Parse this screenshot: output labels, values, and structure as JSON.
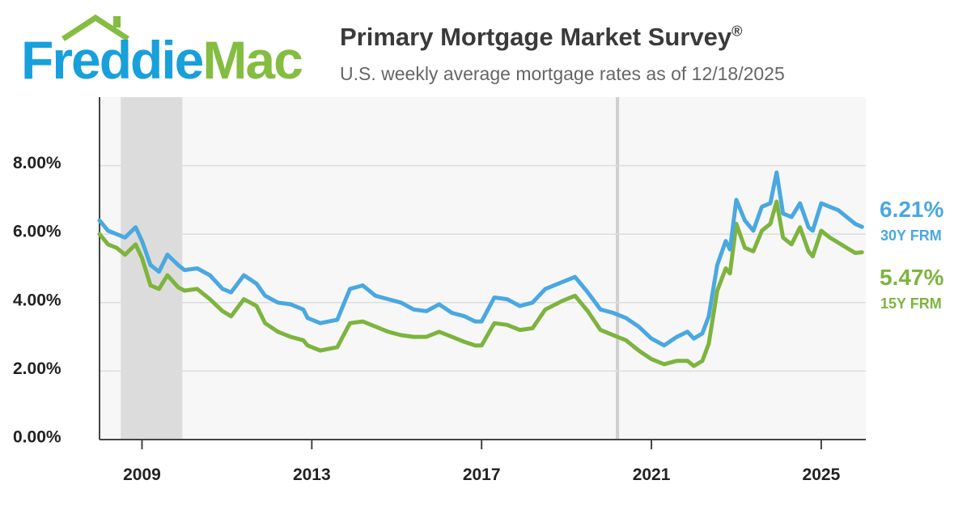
{
  "header": {
    "logo_text_1": "Freddie",
    "logo_text_2": "Mac",
    "title": "Primary Mortgage Market Survey",
    "title_mark": "®",
    "subtitle": "U.S. weekly average mortgage rates as of 12/18/2025"
  },
  "colors": {
    "brand_blue": "#18a0dc",
    "brand_green": "#84bd41",
    "series_30y": "#4aa8e0",
    "series_15y": "#7db43e",
    "recession_band": "#dcdcdc",
    "plot_background": "#f7f7f7"
  },
  "chart_data": {
    "type": "line",
    "title": "Primary Mortgage Market Survey",
    "subtitle": "U.S. weekly average mortgage rates as of 12/18/2025",
    "xlabel": "",
    "ylabel": "",
    "xlim": [
      2008.0,
      2026.05
    ],
    "ylim": [
      0,
      10
    ],
    "yticks": [
      0,
      2,
      4,
      6,
      8
    ],
    "ytick_labels": [
      "0.00%",
      "2.00%",
      "4.00%",
      "6.00%",
      "8.00%"
    ],
    "xticks": [
      2009,
      2013,
      2017,
      2021,
      2025
    ],
    "xtick_labels": [
      "2009",
      "2013",
      "2017",
      "2021",
      "2025"
    ],
    "grid": "horizontal",
    "shaded_periods": [
      {
        "start": 2008.5,
        "end": 2009.95,
        "label": ""
      }
    ],
    "reference_lines": [
      2020.2
    ],
    "series": [
      {
        "name": "30Y FRM",
        "end_label": "6.21%",
        "x": [
          2008.0,
          2008.2,
          2008.4,
          2008.6,
          2008.85,
          2009.0,
          2009.2,
          2009.4,
          2009.6,
          2009.85,
          2010.0,
          2010.3,
          2010.6,
          2010.9,
          2011.1,
          2011.4,
          2011.7,
          2011.9,
          2012.2,
          2012.5,
          2012.8,
          2012.9,
          2013.2,
          2013.4,
          2013.6,
          2013.9,
          2014.2,
          2014.5,
          2014.8,
          2015.1,
          2015.4,
          2015.7,
          2016.0,
          2016.3,
          2016.6,
          2016.85,
          2017.0,
          2017.3,
          2017.6,
          2017.9,
          2018.2,
          2018.5,
          2018.9,
          2019.2,
          2019.5,
          2019.8,
          2020.1,
          2020.4,
          2020.7,
          2021.0,
          2021.3,
          2021.6,
          2021.85,
          2022.0,
          2022.2,
          2022.35,
          2022.55,
          2022.75,
          2022.85,
          2023.0,
          2023.2,
          2023.4,
          2023.6,
          2023.8,
          2023.95,
          2024.1,
          2024.3,
          2024.5,
          2024.7,
          2024.8,
          2025.0,
          2025.2,
          2025.4,
          2025.6,
          2025.8,
          2025.96
        ],
        "y": [
          6.4,
          6.1,
          6.0,
          5.9,
          6.2,
          5.8,
          5.1,
          4.9,
          5.4,
          5.1,
          4.95,
          5.0,
          4.8,
          4.4,
          4.3,
          4.8,
          4.55,
          4.2,
          4.0,
          3.95,
          3.8,
          3.55,
          3.4,
          3.45,
          3.5,
          4.4,
          4.5,
          4.2,
          4.1,
          4.0,
          3.8,
          3.75,
          3.95,
          3.7,
          3.6,
          3.45,
          3.45,
          4.15,
          4.1,
          3.9,
          4.0,
          4.4,
          4.6,
          4.75,
          4.3,
          3.8,
          3.7,
          3.55,
          3.3,
          2.95,
          2.75,
          3.0,
          3.15,
          2.95,
          3.1,
          3.6,
          5.1,
          5.8,
          5.55,
          7.0,
          6.4,
          6.1,
          6.8,
          6.9,
          7.8,
          6.6,
          6.5,
          6.9,
          6.2,
          6.1,
          6.9,
          6.8,
          6.7,
          6.5,
          6.3,
          6.21
        ]
      },
      {
        "name": "15Y FRM",
        "end_label": "5.47%",
        "x": [
          2008.0,
          2008.2,
          2008.4,
          2008.6,
          2008.85,
          2009.0,
          2009.2,
          2009.4,
          2009.6,
          2009.85,
          2010.0,
          2010.3,
          2010.6,
          2010.9,
          2011.1,
          2011.4,
          2011.7,
          2011.9,
          2012.2,
          2012.5,
          2012.8,
          2012.9,
          2013.2,
          2013.4,
          2013.6,
          2013.9,
          2014.2,
          2014.5,
          2014.8,
          2015.1,
          2015.4,
          2015.7,
          2016.0,
          2016.3,
          2016.6,
          2016.85,
          2017.0,
          2017.3,
          2017.6,
          2017.9,
          2018.2,
          2018.5,
          2018.9,
          2019.2,
          2019.5,
          2019.8,
          2020.1,
          2020.4,
          2020.7,
          2021.0,
          2021.3,
          2021.6,
          2021.85,
          2022.0,
          2022.2,
          2022.35,
          2022.55,
          2022.75,
          2022.85,
          2023.0,
          2023.2,
          2023.4,
          2023.6,
          2023.8,
          2023.95,
          2024.1,
          2024.3,
          2024.5,
          2024.7,
          2024.8,
          2025.0,
          2025.2,
          2025.4,
          2025.6,
          2025.8,
          2025.96
        ],
        "y": [
          6.0,
          5.7,
          5.6,
          5.4,
          5.7,
          5.3,
          4.5,
          4.4,
          4.8,
          4.45,
          4.35,
          4.4,
          4.1,
          3.75,
          3.6,
          4.1,
          3.9,
          3.4,
          3.15,
          3.0,
          2.9,
          2.75,
          2.6,
          2.65,
          2.7,
          3.4,
          3.45,
          3.3,
          3.15,
          3.05,
          3.0,
          3.0,
          3.15,
          3.0,
          2.85,
          2.75,
          2.75,
          3.4,
          3.35,
          3.2,
          3.25,
          3.8,
          4.05,
          4.2,
          3.75,
          3.2,
          3.05,
          2.9,
          2.6,
          2.35,
          2.2,
          2.3,
          2.3,
          2.15,
          2.3,
          2.8,
          4.35,
          5.0,
          4.85,
          6.3,
          5.6,
          5.5,
          6.1,
          6.3,
          6.95,
          5.9,
          5.7,
          6.2,
          5.5,
          5.35,
          6.1,
          5.9,
          5.75,
          5.6,
          5.45,
          5.47
        ]
      }
    ],
    "legend": "end-of-line labels at right"
  }
}
